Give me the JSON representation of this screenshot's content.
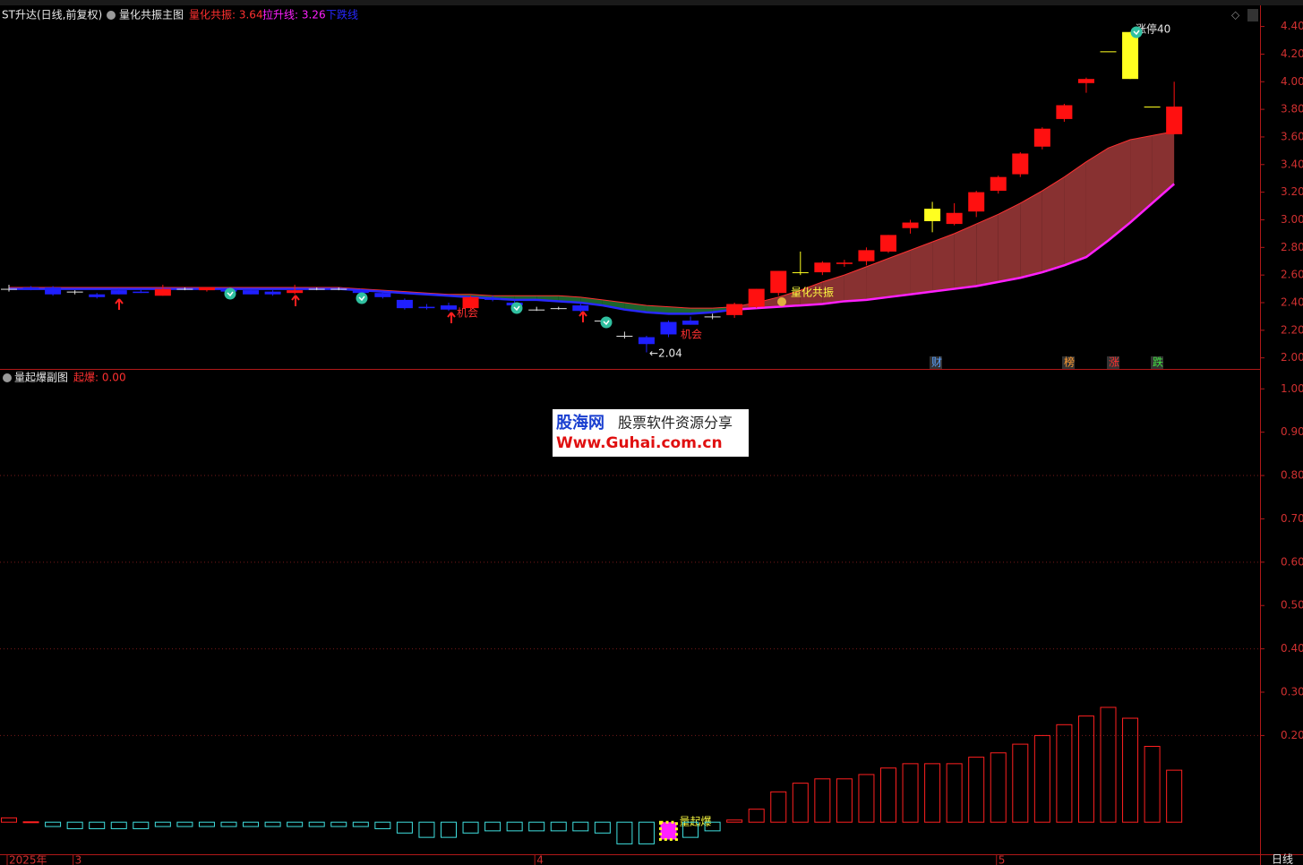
{
  "header": {
    "title": "ST升达(日线,前复权)",
    "indicator": "量化共振主图",
    "sub_indicator": "量起爆副图",
    "period": "日线"
  },
  "watermark": {
    "brand": "股海网",
    "slogan": "股票软件资源分享",
    "url": "Www.Guhai.com.cn"
  },
  "chart_data": [
    {
      "type": "candlestick",
      "categories": [
        "2025年",
        null,
        null,
        "3",
        null,
        null,
        null,
        null,
        null,
        null,
        null,
        null,
        null,
        null,
        null,
        null,
        null,
        null,
        null,
        null,
        null,
        null,
        null,
        null,
        "4",
        null,
        null,
        null,
        null,
        null,
        null,
        null,
        null,
        null,
        null,
        null,
        null,
        null,
        null,
        null,
        null,
        null,
        null,
        null,
        null,
        "5",
        null,
        null,
        null,
        null,
        null,
        null,
        null,
        null
      ],
      "open": [
        2.5,
        2.51,
        2.51,
        2.48,
        2.46,
        2.49,
        2.48,
        2.45,
        2.5,
        2.49,
        2.5,
        2.49,
        2.48,
        2.47,
        2.5,
        2.5,
        2.49,
        2.47,
        2.42,
        2.37,
        2.38,
        2.36,
        2.43,
        2.4,
        2.35,
        2.36,
        2.38,
        2.27,
        2.16,
        2.15,
        2.26,
        2.27,
        2.3,
        2.31,
        2.37,
        2.47,
        2.62,
        2.62,
        2.68,
        2.7,
        2.77,
        2.94,
        2.99,
        2.97,
        3.06,
        3.21,
        3.33,
        3.53,
        3.73,
        3.99,
        4.22,
        4.02,
        3.82,
        3.62
      ],
      "high": [
        2.53,
        2.52,
        2.52,
        2.49,
        2.47,
        2.5,
        2.5,
        2.53,
        2.51,
        2.51,
        2.51,
        2.5,
        2.49,
        2.53,
        2.51,
        2.51,
        2.5,
        2.48,
        2.43,
        2.39,
        2.4,
        2.45,
        2.45,
        2.42,
        2.37,
        2.37,
        2.4,
        2.28,
        2.19,
        2.16,
        2.27,
        2.3,
        2.32,
        2.4,
        2.5,
        2.63,
        2.77,
        2.7,
        2.71,
        2.8,
        2.89,
        3.0,
        3.13,
        3.12,
        3.21,
        3.32,
        3.49,
        3.67,
        3.84,
        4.03,
        4.22,
        4.36,
        3.82,
        4.0
      ],
      "low": [
        2.48,
        2.49,
        2.45,
        2.46,
        2.43,
        2.46,
        2.47,
        2.45,
        2.49,
        2.48,
        2.48,
        2.46,
        2.45,
        2.46,
        2.49,
        2.49,
        2.46,
        2.43,
        2.35,
        2.35,
        2.34,
        2.35,
        2.41,
        2.37,
        2.34,
        2.35,
        2.33,
        2.24,
        2.14,
        2.04,
        2.15,
        2.24,
        2.28,
        2.29,
        2.36,
        2.45,
        2.6,
        2.6,
        2.66,
        2.67,
        2.76,
        2.9,
        2.91,
        2.96,
        3.02,
        3.19,
        3.31,
        3.51,
        3.71,
        3.92,
        4.22,
        4.02,
        3.82,
        3.62
      ],
      "close": [
        2.5,
        2.5,
        2.46,
        2.48,
        2.44,
        2.46,
        2.47,
        2.5,
        2.5,
        2.51,
        2.48,
        2.46,
        2.46,
        2.49,
        2.5,
        2.5,
        2.47,
        2.44,
        2.36,
        2.36,
        2.35,
        2.44,
        2.42,
        2.38,
        2.35,
        2.36,
        2.34,
        2.27,
        2.16,
        2.1,
        2.17,
        2.24,
        2.3,
        2.39,
        2.5,
        2.63,
        2.62,
        2.69,
        2.69,
        2.78,
        2.89,
        2.98,
        3.08,
        3.05,
        3.2,
        3.31,
        3.48,
        3.66,
        3.83,
        4.02,
        4.22,
        4.36,
        3.82,
        3.82
      ],
      "up_color": "#ff1010",
      "down_color": "#1f1fff",
      "doji_color": "#e0e0e0",
      "highlight_color": "#ffff20",
      "highlight": [
        36,
        42,
        50,
        51,
        52
      ],
      "series": [
        {
          "color": "#ff3030",
          "values": [
            2.51,
            2.51,
            2.51,
            2.51,
            2.51,
            2.51,
            2.51,
            2.51,
            2.51,
            2.51,
            2.51,
            2.51,
            2.51,
            2.51,
            2.51,
            2.51,
            2.5,
            2.49,
            2.48,
            2.47,
            2.46,
            2.46,
            2.45,
            2.45,
            2.45,
            2.45,
            2.44,
            2.42,
            2.4,
            2.38,
            2.37,
            2.36,
            2.36,
            2.37,
            2.4,
            2.44,
            2.49,
            2.55,
            2.6,
            2.66,
            2.72,
            2.78,
            2.84,
            2.9,
            2.97,
            3.04,
            3.12,
            3.21,
            3.31,
            3.42,
            3.52,
            3.58,
            3.61,
            3.64
          ]
        },
        {
          "color": "#ff20ff",
          "values": [
            null,
            null,
            null,
            null,
            null,
            null,
            null,
            null,
            null,
            null,
            null,
            null,
            null,
            null,
            null,
            null,
            null,
            null,
            null,
            null,
            null,
            null,
            null,
            null,
            null,
            null,
            null,
            null,
            null,
            null,
            null,
            null,
            null,
            2.35,
            2.36,
            2.37,
            2.38,
            2.39,
            2.41,
            2.42,
            2.44,
            2.46,
            2.48,
            2.5,
            2.52,
            2.55,
            2.58,
            2.62,
            2.67,
            2.73,
            2.85,
            2.98,
            3.12,
            3.26
          ]
        },
        {
          "color": "#2828ff",
          "values": [
            2.5,
            2.5,
            2.5,
            2.5,
            2.5,
            2.5,
            2.5,
            2.5,
            2.5,
            2.5,
            2.5,
            2.5,
            2.5,
            2.5,
            2.5,
            2.5,
            2.49,
            2.48,
            2.47,
            2.46,
            2.45,
            2.44,
            2.43,
            2.42,
            2.42,
            2.41,
            2.4,
            2.38,
            2.35,
            2.33,
            2.32,
            2.32,
            2.33,
            2.35,
            null,
            null,
            null,
            null,
            null,
            null,
            null,
            null,
            null,
            null,
            null,
            null,
            null,
            null,
            null,
            null,
            null,
            null,
            null,
            null
          ]
        }
      ],
      "band_fall_color": "#1d6a30",
      "band_rise_color": "#8f3434",
      "legend_labels": [
        "量化共振: 3.64",
        "拉升线: 3.26",
        "下跌线"
      ],
      "annotations": [
        "量化共振",
        "机会",
        "机会",
        "←2.04",
        "涨停40",
        "财",
        "榜",
        "涨",
        "跌"
      ],
      "ylim": [
        1.92,
        4.54
      ],
      "yticks": [
        {
          "value": 2.0,
          "label": "2.00"
        },
        {
          "value": 2.2,
          "label": "2.20"
        },
        {
          "value": 2.4,
          "label": "2.40"
        },
        {
          "value": 2.6,
          "label": "2.60"
        },
        {
          "value": 2.8,
          "label": "2.80"
        },
        {
          "value": 3.0,
          "label": "3.00"
        },
        {
          "value": 3.2,
          "label": "3.20"
        },
        {
          "value": 3.4,
          "label": "3.40"
        },
        {
          "value": 3.6,
          "label": "3.60"
        },
        {
          "value": 3.8,
          "label": "3.80"
        },
        {
          "value": 4.0,
          "label": "4.00"
        },
        {
          "value": 4.2,
          "label": "4.20"
        },
        {
          "value": 4.4,
          "label": "4.40"
        }
      ]
    },
    {
      "type": "bar",
      "values": [
        0.01,
        0.0,
        -0.01,
        -0.015,
        -0.015,
        -0.015,
        -0.015,
        -0.01,
        -0.01,
        -0.01,
        -0.01,
        -0.01,
        -0.01,
        -0.01,
        -0.01,
        -0.01,
        -0.01,
        -0.015,
        -0.025,
        -0.035,
        -0.035,
        -0.025,
        -0.02,
        -0.02,
        -0.02,
        -0.02,
        -0.02,
        -0.025,
        -0.05,
        -0.05,
        -0.04,
        -0.035,
        -0.02,
        0.005,
        0.03,
        0.07,
        0.09,
        0.1,
        0.1,
        0.11,
        0.125,
        0.135,
        0.135,
        0.135,
        0.15,
        0.16,
        0.18,
        0.2,
        0.225,
        0.245,
        0.265,
        0.24,
        0.175,
        0.12
      ],
      "up_color": "#ff2020",
      "down_color": "#40e0e0",
      "signal_index": 30,
      "signal_label": "量起爆",
      "signal_colors": [
        "#ffff20",
        "#ff20ff"
      ],
      "legend_labels": [
        "起爆: 0.00"
      ],
      "grid": true,
      "ylim": [
        -0.074,
        1.046
      ],
      "yticks": [
        {
          "value": 0.2,
          "label": "0.20"
        },
        {
          "value": 0.3,
          "label": "0.30"
        },
        {
          "value": 0.4,
          "label": "0.40"
        },
        {
          "value": 0.5,
          "label": "0.50"
        },
        {
          "value": 0.6,
          "label": "0.60"
        },
        {
          "value": 0.7,
          "label": "0.70"
        },
        {
          "value": 0.8,
          "label": "0.80"
        },
        {
          "value": 0.9,
          "label": "0.90"
        },
        {
          "value": 1.0,
          "label": "1.00"
        }
      ]
    }
  ]
}
